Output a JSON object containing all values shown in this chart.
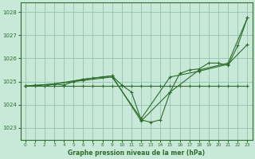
{
  "title": "Graphe pression niveau de la mer (hPa)",
  "bg_color": "#c8e8d8",
  "grid_color": "#8abcaa",
  "line_color": "#2d6e2d",
  "xlim": [
    -0.5,
    23.5
  ],
  "ylim": [
    1022.5,
    1028.4
  ],
  "yticks": [
    1023,
    1024,
    1025,
    1026,
    1027,
    1028
  ],
  "xticks": [
    0,
    1,
    2,
    3,
    4,
    5,
    6,
    7,
    8,
    9,
    10,
    11,
    12,
    13,
    14,
    15,
    16,
    17,
    18,
    19,
    20,
    21,
    22,
    23
  ],
  "series": [
    {
      "x": [
        0,
        1,
        2,
        3,
        4,
        5,
        6,
        7,
        8,
        9,
        10,
        11,
        12,
        13,
        14,
        15,
        16,
        17,
        18,
        19,
        20,
        21,
        22,
        23
      ],
      "y": [
        1024.8,
        1024.8,
        1024.8,
        1024.8,
        1024.8,
        1024.8,
        1024.8,
        1024.8,
        1024.8,
        1024.8,
        1024.8,
        1024.8,
        1024.8,
        1024.8,
        1024.8,
        1024.8,
        1024.8,
        1024.8,
        1024.8,
        1024.8,
        1024.8,
        1024.8,
        1024.8,
        1024.8
      ]
    },
    {
      "x": [
        0,
        1,
        2,
        3,
        4,
        5,
        6,
        7,
        8,
        9,
        10,
        11,
        12,
        13,
        14,
        15,
        16,
        17,
        18,
        19,
        20,
        21,
        22,
        23
      ],
      "y": [
        1024.8,
        1024.85,
        1024.8,
        1024.9,
        1024.85,
        1025.0,
        1025.1,
        1025.15,
        1025.2,
        1025.25,
        1024.85,
        1024.55,
        1023.35,
        1023.25,
        1023.35,
        1024.55,
        1025.35,
        1025.5,
        1025.55,
        1025.8,
        1025.8,
        1025.7,
        1026.55,
        1027.75
      ]
    },
    {
      "x": [
        0,
        3,
        6,
        9,
        12,
        15,
        18,
        21,
        23
      ],
      "y": [
        1024.8,
        1024.9,
        1025.1,
        1025.25,
        1023.3,
        1024.55,
        1025.5,
        1025.8,
        1027.75
      ]
    },
    {
      "x": [
        0,
        3,
        6,
        9,
        12,
        15,
        18,
        21,
        23
      ],
      "y": [
        1024.8,
        1024.9,
        1025.05,
        1025.2,
        1023.4,
        1025.2,
        1025.45,
        1025.75,
        1026.6
      ]
    }
  ]
}
